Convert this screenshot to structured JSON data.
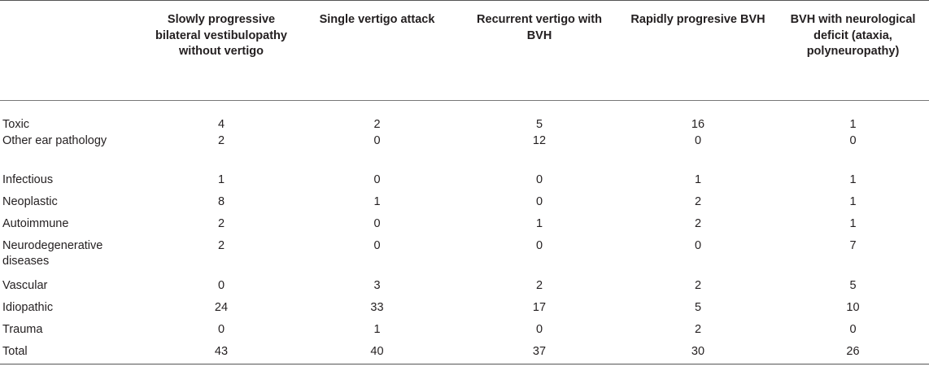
{
  "table": {
    "headers": [
      "",
      "Slowly progressive bilateral vestibulopathy without vertigo",
      "Single vertigo attack",
      "Recurrent vertigo with BVH",
      "Rapidly progresive BVH",
      "BVH with neurological deficit (ataxia, polyneuropathy)"
    ],
    "rows": [
      {
        "label": "Toxic",
        "values": [
          "4",
          "2",
          "5",
          "16",
          "1"
        ]
      },
      {
        "label": "Other ear pathology",
        "values": [
          "2",
          "0",
          "12",
          "0",
          "0"
        ]
      },
      {
        "label": "Infectious",
        "values": [
          "1",
          "0",
          "0",
          "1",
          "1"
        ]
      },
      {
        "label": "Neoplastic",
        "values": [
          "8",
          "1",
          "0",
          "2",
          "1"
        ]
      },
      {
        "label": "Autoimmune",
        "values": [
          "2",
          "0",
          "1",
          "2",
          "1"
        ]
      },
      {
        "label": "Neurodegenerative diseases",
        "values": [
          "2",
          "0",
          "0",
          "0",
          "7"
        ]
      },
      {
        "label": "Vascular",
        "values": [
          "0",
          "3",
          "2",
          "2",
          "5"
        ]
      },
      {
        "label": "Idiopathic",
        "values": [
          "24",
          "33",
          "17",
          "5",
          "10"
        ]
      },
      {
        "label": "Trauma",
        "values": [
          "0",
          "1",
          "0",
          "2",
          "0"
        ]
      },
      {
        "label": "Total",
        "values": [
          "43",
          "40",
          "37",
          "30",
          "26"
        ]
      }
    ]
  }
}
